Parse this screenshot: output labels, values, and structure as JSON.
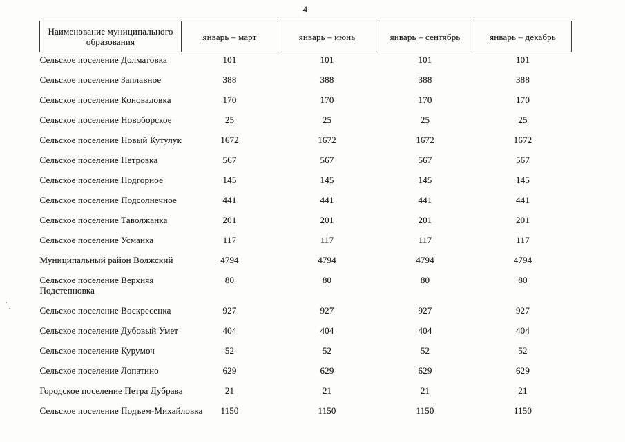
{
  "page": {
    "number": "4"
  },
  "table": {
    "columns": [
      "Наименование муниципального образования",
      "январь – март",
      "январь – июнь",
      "январь – сентябрь",
      "январь – декабрь"
    ],
    "rows": [
      {
        "name": "Сельское поселение Долматовка",
        "values": [
          "101",
          "101",
          "101",
          "101"
        ]
      },
      {
        "name": "Сельское поселение Заплавное",
        "values": [
          "388",
          "388",
          "388",
          "388"
        ]
      },
      {
        "name": "Сельское поселение Коноваловка",
        "values": [
          "170",
          "170",
          "170",
          "170"
        ]
      },
      {
        "name": "Сельское поселение Новоборское",
        "values": [
          "25",
          "25",
          "25",
          "25"
        ]
      },
      {
        "name": "Сельское поселение Новый Кутулук",
        "values": [
          "1672",
          "1672",
          "1672",
          "1672"
        ]
      },
      {
        "name": "Сельское поселение Петровка",
        "values": [
          "567",
          "567",
          "567",
          "567"
        ]
      },
      {
        "name": "Сельское поселение Подгорное",
        "values": [
          "145",
          "145",
          "145",
          "145"
        ]
      },
      {
        "name": "Сельское поселение Подсолнечное",
        "values": [
          "441",
          "441",
          "441",
          "441"
        ]
      },
      {
        "name": "Сельское поселение Таволжанка",
        "values": [
          "201",
          "201",
          "201",
          "201"
        ]
      },
      {
        "name": "Сельское поселение Усманка",
        "values": [
          "117",
          "117",
          "117",
          "117"
        ]
      },
      {
        "name": "Муниципальный район Волжский",
        "values": [
          "4794",
          "4794",
          "4794",
          "4794"
        ]
      },
      {
        "name": "Сельское поселение Верхняя Подстепновка",
        "values": [
          "80",
          "80",
          "80",
          "80"
        ]
      },
      {
        "name": "Сельское поселение Воскресенка",
        "values": [
          "927",
          "927",
          "927",
          "927"
        ]
      },
      {
        "name": "Сельское поселение Дубовый Умет",
        "values": [
          "404",
          "404",
          "404",
          "404"
        ]
      },
      {
        "name": "Сельское поселение Курумоч",
        "values": [
          "52",
          "52",
          "52",
          "52"
        ]
      },
      {
        "name": "Сельское поселение Лопатино",
        "values": [
          "629",
          "629",
          "629",
          "629"
        ]
      },
      {
        "name": "Городское поселение Петра Дубрава",
        "values": [
          "21",
          "21",
          "21",
          "21"
        ]
      },
      {
        "name": "Сельское поселение Подъем-Михайловка",
        "values": [
          "1150",
          "1150",
          "1150",
          "1150"
        ]
      }
    ]
  }
}
